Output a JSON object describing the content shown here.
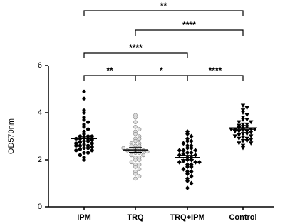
{
  "chart_data": {
    "type": "scatter",
    "y_label": "OD570nm",
    "categories": [
      "IPM",
      "TRQ",
      "TRQ+IPM",
      "Control"
    ],
    "ylim": [
      0,
      6
    ],
    "yticks": [
      0,
      2,
      4,
      6
    ],
    "series": [
      {
        "name": "IPM",
        "marker": "circle",
        "color": "#000000",
        "values": [
          4.9,
          4.6,
          4.1,
          4.0,
          3.8,
          3.7,
          3.6,
          3.5,
          3.4,
          3.3,
          3.2,
          3.1,
          3.0,
          3.0,
          2.95,
          2.9,
          2.9,
          2.85,
          2.8,
          2.8,
          2.75,
          2.7,
          2.7,
          2.65,
          2.6,
          2.6,
          2.55,
          2.5,
          2.5,
          2.45,
          2.4,
          2.4,
          2.3,
          2.3,
          2.2,
          2.1,
          2.0,
          2.6,
          3.0,
          2.9
        ],
        "mean": 2.9,
        "sem": 0.1
      },
      {
        "name": "TRQ",
        "marker": "open-circle",
        "color": "#8c8c8c",
        "values": [
          3.9,
          3.8,
          3.6,
          3.4,
          3.3,
          3.2,
          3.1,
          3.0,
          2.9,
          2.9,
          2.8,
          2.7,
          2.7,
          2.6,
          2.6,
          2.5,
          2.5,
          2.45,
          2.4,
          2.4,
          2.35,
          2.3,
          2.3,
          2.2,
          2.2,
          2.1,
          2.1,
          2.0,
          2.0,
          1.9,
          1.8,
          1.8,
          1.7,
          1.6,
          1.5,
          1.4,
          1.3,
          1.2,
          2.5,
          2.6
        ],
        "mean": 2.42,
        "sem": 0.1
      },
      {
        "name": "TRQ+IPM",
        "marker": "diamond",
        "color": "#000000",
        "values": [
          3.2,
          3.1,
          3.0,
          2.9,
          2.8,
          2.8,
          2.7,
          2.6,
          2.5,
          2.5,
          2.4,
          2.4,
          2.3,
          2.3,
          2.25,
          2.2,
          2.2,
          2.1,
          2.1,
          2.0,
          2.0,
          1.95,
          1.9,
          1.9,
          1.8,
          1.8,
          1.7,
          1.7,
          1.6,
          1.5,
          1.5,
          1.4,
          1.3,
          1.2,
          1.1,
          1.0,
          0.8,
          2.6,
          2.4,
          1.9
        ],
        "mean": 2.1,
        "sem": 0.09
      },
      {
        "name": "Control",
        "marker": "triangle-down",
        "color": "#000000",
        "values": [
          4.3,
          4.2,
          4.1,
          4.0,
          3.9,
          3.8,
          3.7,
          3.7,
          3.6,
          3.6,
          3.5,
          3.5,
          3.45,
          3.4,
          3.4,
          3.35,
          3.3,
          3.3,
          3.3,
          3.25,
          3.2,
          3.2,
          3.15,
          3.1,
          3.1,
          3.05,
          3.0,
          3.0,
          2.95,
          2.9,
          2.9,
          2.85,
          2.8,
          2.8,
          2.7,
          2.7,
          2.6,
          2.5,
          3.3,
          3.2
        ],
        "mean": 3.3,
        "sem": 0.07
      }
    ],
    "comparisons": [
      {
        "groups": [
          0,
          3
        ],
        "label": "**"
      },
      {
        "groups": [
          1,
          3
        ],
        "label": "****"
      },
      {
        "groups": [
          0,
          2
        ],
        "label": "****"
      },
      {
        "groups": [
          0,
          1
        ],
        "label": "**"
      },
      {
        "groups": [
          1,
          2
        ],
        "label": "*"
      },
      {
        "groups": [
          2,
          3
        ],
        "label": "****"
      }
    ]
  }
}
